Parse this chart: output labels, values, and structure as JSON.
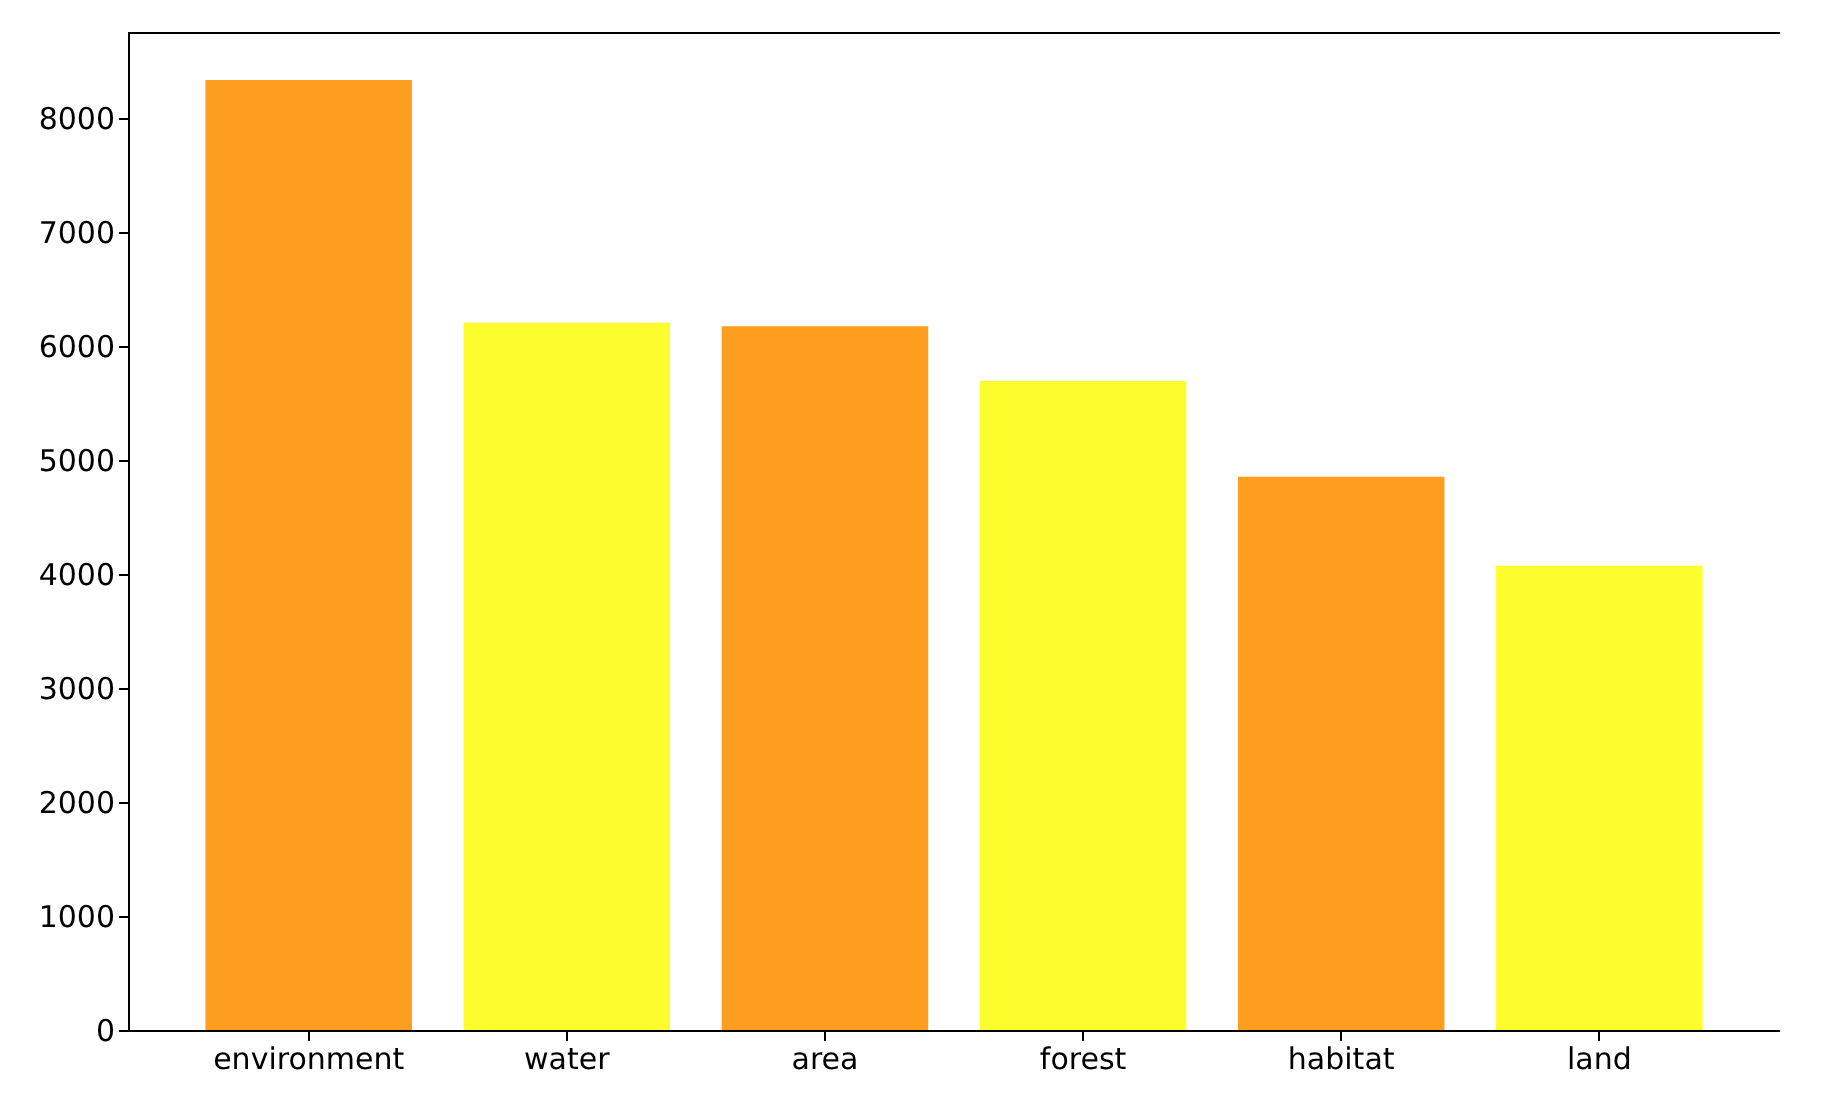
{
  "chart_data": {
    "type": "bar",
    "categories": [
      "environment",
      "water",
      "area",
      "forest",
      "habitat",
      "land"
    ],
    "values": [
      8330,
      6200,
      6170,
      5690,
      4850,
      4070
    ],
    "colors": [
      "#fd9e1f",
      "#fdfd2e",
      "#fd9e1f",
      "#fdfd2e",
      "#fd9e1f",
      "#fdfd2e"
    ],
    "ylim": [
      0,
      8750
    ],
    "yticks": [
      0,
      1000,
      2000,
      3000,
      4000,
      5000,
      6000,
      7000,
      8000
    ],
    "grid": false
  }
}
